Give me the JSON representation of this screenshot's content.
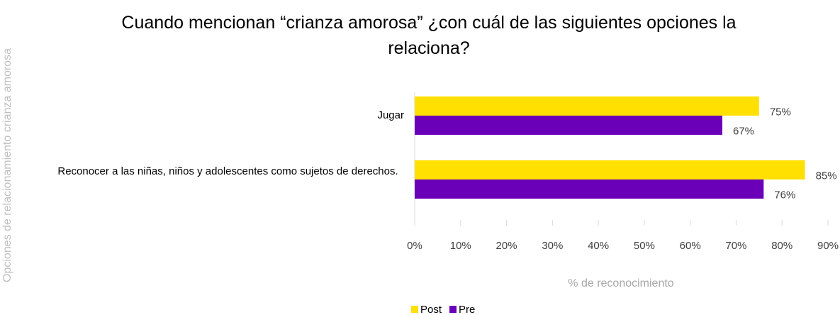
{
  "chart_data": {
    "type": "bar",
    "orientation": "horizontal",
    "title": "Cuando mencionan “crianza amorosa” ¿con cuál de las siguientes opciones la relaciona?",
    "categories": [
      "Jugar",
      "Reconocer a las niñas, niños y adolescentes como sujetos de derechos."
    ],
    "series": [
      {
        "name": "Post",
        "color": "#FFE000",
        "values": [
          75,
          85
        ],
        "value_labels": [
          "75%",
          "85%"
        ]
      },
      {
        "name": "Pre",
        "color": "#6A00B8",
        "values": [
          67,
          76
        ],
        "value_labels": [
          "67%",
          "76%"
        ]
      }
    ],
    "xlim": [
      0,
      90
    ],
    "xticks": [
      {
        "value": 0,
        "label": "0%"
      },
      {
        "value": 10,
        "label": "10%"
      },
      {
        "value": 20,
        "label": "20%"
      },
      {
        "value": 30,
        "label": "30%"
      },
      {
        "value": 40,
        "label": "40%"
      },
      {
        "value": 50,
        "label": "50%"
      },
      {
        "value": 60,
        "label": "60%"
      },
      {
        "value": 70,
        "label": "70%"
      },
      {
        "value": 80,
        "label": "80%"
      },
      {
        "value": 90,
        "label": "90%"
      }
    ],
    "xlabel": "% de reconocimiento",
    "ylabel": "Opciones de relacionamiento crianza amorosa",
    "legend": "bottom"
  }
}
